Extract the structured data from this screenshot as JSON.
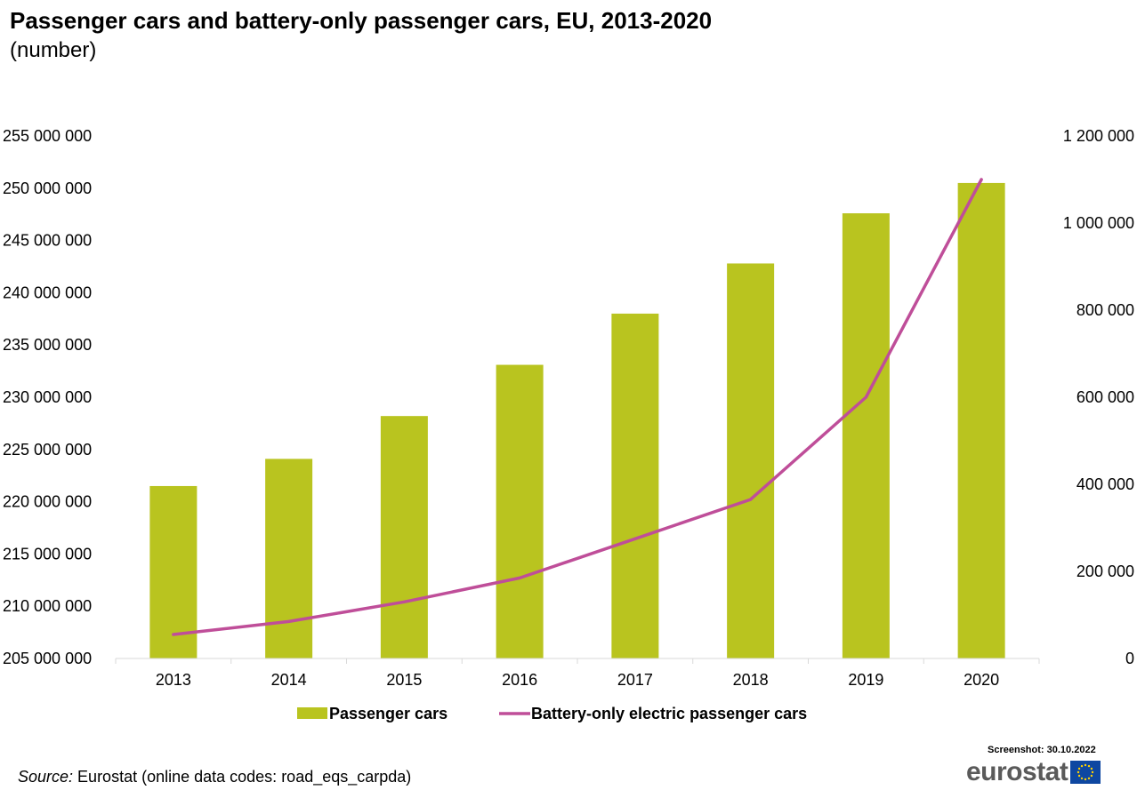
{
  "header": {
    "title": "Passenger cars and battery-only passenger cars, EU, 2013-2020",
    "subtitle": "(number)"
  },
  "footer": {
    "screenshot": "Screenshot: 30.10.2022",
    "source_label": "Source:",
    "source_text": " Eurostat (online data codes: road_eqs_carpda)",
    "logo_text": "eurostat"
  },
  "colors": {
    "bar": "#b9c41f",
    "line": "#bf4e99",
    "axis": "#d9d9d9",
    "eu_blue": "#0e47a1",
    "eu_star": "#ffd200"
  },
  "chart_data": {
    "type": "bar",
    "categories": [
      "2013",
      "2014",
      "2015",
      "2016",
      "2017",
      "2018",
      "2019",
      "2020"
    ],
    "series": [
      {
        "name": "Passenger cars",
        "type": "bar",
        "axis": "left",
        "values": [
          221500000,
          224100000,
          228200000,
          233100000,
          238000000,
          242800000,
          247600000,
          250500000
        ]
      },
      {
        "name": "Battery-only electric passenger cars",
        "type": "line",
        "axis": "right",
        "values": [
          55000,
          85000,
          130000,
          185000,
          275000,
          365000,
          600000,
          1100000
        ]
      }
    ],
    "y_left": {
      "ylim": [
        205000000,
        255000000
      ],
      "ticks": [
        "205 000 000",
        "210 000 000",
        "215 000 000",
        "220 000 000",
        "225 000 000",
        "230 000 000",
        "235 000 000",
        "240 000 000",
        "245 000 000",
        "250 000 000",
        "255 000 000"
      ]
    },
    "y_right": {
      "ylim": [
        0,
        1200000
      ],
      "ticks": [
        "0",
        "200 000",
        "400 000",
        "600 000",
        "800 000",
        "1 000 000",
        "1 200 000"
      ]
    },
    "grid": false,
    "legend_position": "bottom"
  }
}
